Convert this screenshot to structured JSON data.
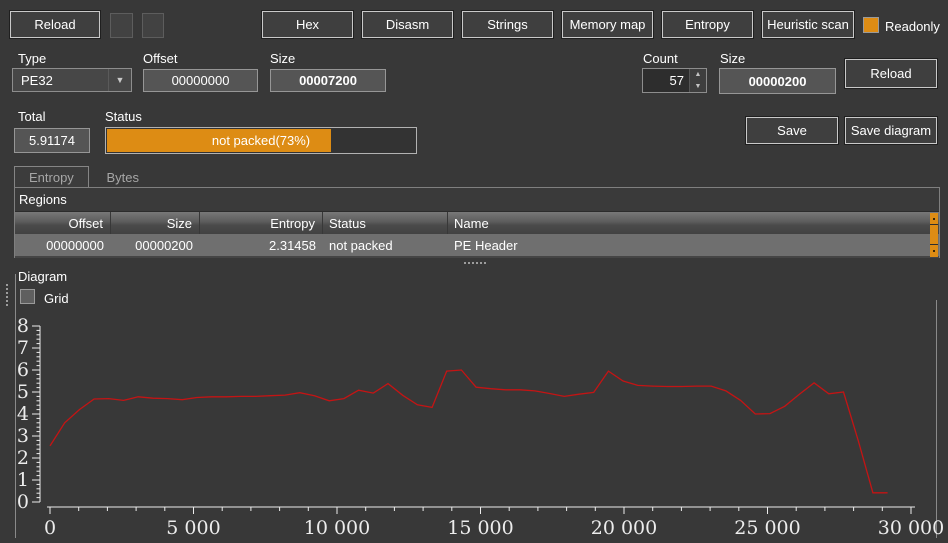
{
  "toolbar": {
    "reload_label": "Reload",
    "hex": "Hex",
    "disasm": "Disasm",
    "strings": "Strings",
    "memory_map": "Memory map",
    "entropy": "Entropy",
    "heuristic_scan": "Heuristic scan",
    "readonly_label": "Readonly",
    "readonly_checked": true
  },
  "controls": {
    "type_label": "Type",
    "type_value": "PE32",
    "offset_label": "Offset",
    "offset_value": "00000000",
    "size_label": "Size",
    "size_value": "00007200",
    "count_label": "Count",
    "count_value": "57",
    "block_size_label": "Size",
    "block_size_value": "00000200",
    "reload_label": "Reload"
  },
  "summary": {
    "total_label": "Total",
    "total_value": "5.91174",
    "status_label": "Status",
    "status_text": "not packed(73%)",
    "status_percent": 73,
    "save_label": "Save",
    "save_diagram_label": "Save diagram"
  },
  "tabs": [
    {
      "label": "Entropy",
      "active": true
    },
    {
      "label": "Bytes",
      "active": false
    }
  ],
  "regions": {
    "title": "Regions",
    "columns": [
      "Offset",
      "Size",
      "Entropy",
      "Status",
      "Name"
    ],
    "rows": [
      [
        "00000000",
        "00000200",
        "2.31458",
        "not packed",
        "PE Header"
      ]
    ]
  },
  "diagram": {
    "title": "Diagram",
    "grid_label": "Grid",
    "grid_checked": false
  },
  "colors": {
    "accent_orange": "#dd8c14",
    "line_red": "#c41414",
    "axis": "#ececec"
  },
  "chart_data": {
    "type": "line",
    "title": "",
    "xlabel": "",
    "ylabel": "",
    "series_name": "entropy",
    "x_start": 0,
    "x_step": 512,
    "values": [
      2.55,
      3.6,
      4.2,
      4.68,
      4.7,
      4.62,
      4.78,
      4.72,
      4.7,
      4.65,
      4.75,
      4.78,
      4.78,
      4.8,
      4.8,
      4.83,
      4.86,
      4.97,
      4.83,
      4.6,
      4.7,
      5.08,
      4.95,
      5.38,
      4.85,
      4.42,
      4.3,
      5.95,
      6.0,
      5.22,
      5.15,
      5.1,
      5.1,
      5.05,
      4.93,
      4.8,
      4.9,
      4.98,
      5.95,
      5.5,
      5.3,
      5.27,
      5.25,
      5.25,
      5.27,
      5.27,
      5.05,
      4.62,
      4.0,
      4.02,
      4.35,
      4.9,
      5.42,
      4.92,
      5.0,
      2.8,
      0.42,
      0.42
    ],
    "xlim": [
      0,
      30000
    ],
    "ylim": [
      0,
      8
    ],
    "x_major_tick": 5000,
    "x_minor_tick": 1000,
    "y_major_tick": 1,
    "y_minor_tick": 0.2,
    "xticklabels": [
      "0",
      "5 000",
      "10 000",
      "15 000",
      "20 000",
      "25 000",
      "30 000"
    ],
    "yticklabels": [
      "0",
      "1",
      "2",
      "3",
      "4",
      "5",
      "6",
      "7",
      "8"
    ],
    "grid": false,
    "legend_position": "none"
  }
}
